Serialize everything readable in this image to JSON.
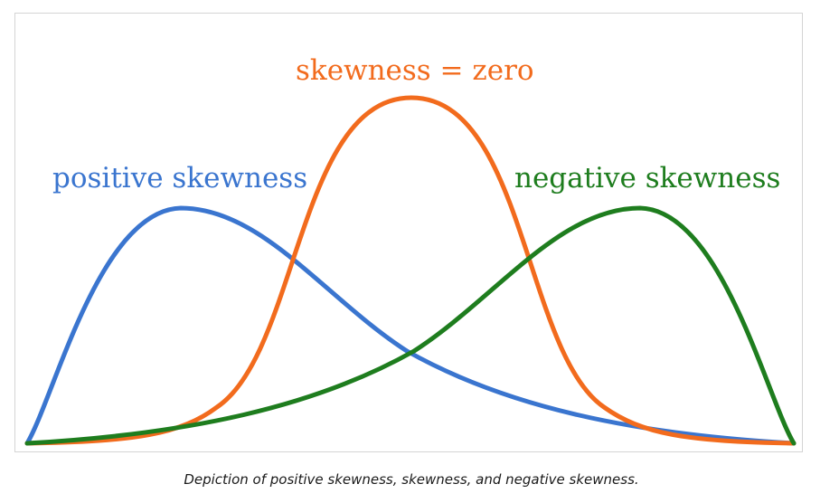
{
  "figure": {
    "caption": "Depiction of positive skewness, skewness, and negative skewness."
  },
  "curves": [
    {
      "name": "positive skewness",
      "label": "positive skewness",
      "color": "#3a75cf"
    },
    {
      "name": "skewness = zero",
      "label": "skewness = zero",
      "color": "#f26b1d"
    },
    {
      "name": "negative skewness",
      "label": "negative skewness",
      "color": "#1e7d1e"
    }
  ]
}
